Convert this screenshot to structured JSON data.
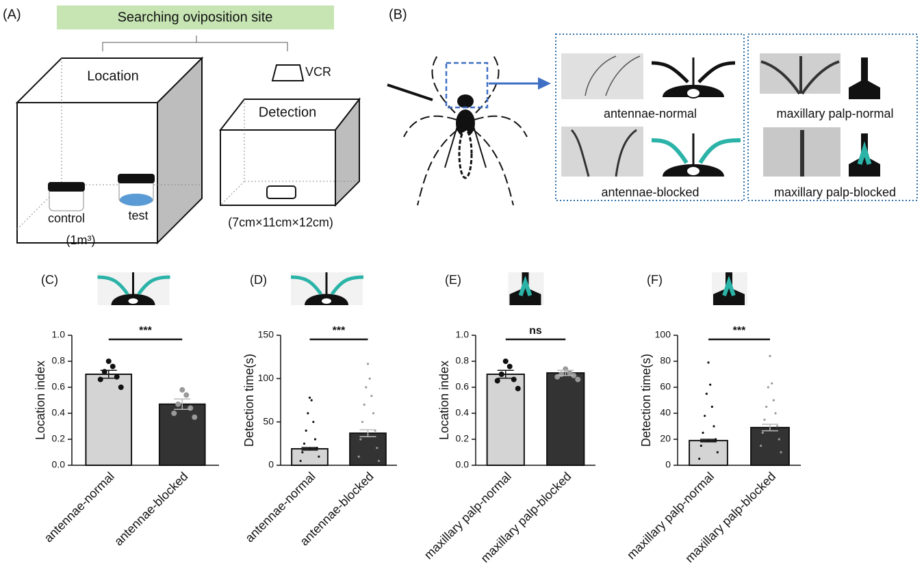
{
  "panel_a": {
    "label": "(A)",
    "banner": "Searching oviposition site",
    "location": "Location",
    "vcr": "VCR",
    "detection": "Detection",
    "control": "control",
    "test": "test",
    "volume": "(1m³)",
    "size": "(7cm×11cm×12cm)"
  },
  "panel_b": {
    "label": "(B)",
    "images": [
      "antennae-normal",
      "antennae-blocked",
      "maxillary palp-normal",
      "maxillary palp-blocked"
    ]
  },
  "chart_data": [
    {
      "type": "bar",
      "panel": "(C)",
      "ylabel": "Location index",
      "categories": [
        "antennae-normal",
        "antennae-blocked"
      ],
      "values": [
        0.7,
        0.47
      ],
      "errors": [
        0.03,
        0.04
      ],
      "colors": [
        "#d4d4d4",
        "#333333"
      ],
      "point_colors": [
        "#111111",
        "#999999"
      ],
      "points": [
        [
          0.8,
          0.76,
          0.72,
          0.68,
          0.66,
          0.6
        ],
        [
          0.58,
          0.54,
          0.47,
          0.44,
          0.4,
          0.37
        ]
      ],
      "ylim": [
        0,
        1
      ],
      "yticks": [
        {
          "value": 0,
          "label": "0.0"
        },
        {
          "value": 0.2,
          "label": "0.2"
        },
        {
          "value": 0.4,
          "label": "0.4"
        },
        {
          "value": 0.6,
          "label": "0.6"
        },
        {
          "value": 0.8,
          "label": "0.8"
        },
        {
          "value": 1,
          "label": "1.0"
        }
      ],
      "significance": "***"
    },
    {
      "type": "bar",
      "panel": "(D)",
      "ylabel": "Detection time(s)",
      "categories": [
        "antennae-normal",
        "antennae-blocked"
      ],
      "values": [
        19,
        37
      ],
      "errors": [
        1.5,
        4
      ],
      "colors": [
        "#d4d4d4",
        "#333333"
      ],
      "point_colors": [
        "#111111",
        "#999999"
      ],
      "points": [
        [
          78,
          75,
          60,
          50,
          40,
          30,
          25,
          20,
          15,
          10,
          5
        ],
        [
          117,
          100,
          90,
          80,
          70,
          60,
          50,
          40,
          30,
          20,
          10,
          5
        ]
      ],
      "ylim": [
        0,
        150
      ],
      "yticks": [
        0,
        50,
        100,
        150
      ],
      "significance": "***"
    },
    {
      "type": "bar",
      "panel": "(E)",
      "ylabel": "Location index",
      "categories": [
        "maxillary palp-normal",
        "maxillary palp-blocked"
      ],
      "values": [
        0.7,
        0.71
      ],
      "errors": [
        0.03,
        0.02
      ],
      "colors": [
        "#d4d4d4",
        "#333333"
      ],
      "point_colors": [
        "#111111",
        "#999999"
      ],
      "points": [
        [
          0.8,
          0.76,
          0.7,
          0.66,
          0.65,
          0.59
        ],
        [
          0.74,
          0.71,
          0.7,
          0.69,
          0.68,
          0.66
        ]
      ],
      "ylim": [
        0,
        1
      ],
      "yticks": [
        {
          "value": 0,
          "label": "0.0"
        },
        {
          "value": 0.2,
          "label": "0.2"
        },
        {
          "value": 0.4,
          "label": "0.4"
        },
        {
          "value": 0.6,
          "label": "0.6"
        },
        {
          "value": 0.8,
          "label": "0.8"
        },
        {
          "value": 1,
          "label": "1.0"
        }
      ],
      "significance": "ns"
    },
    {
      "type": "bar",
      "panel": "(F)",
      "ylabel": "Detection time(s)",
      "categories": [
        "maxillary palp-normal",
        "maxillary palp-blocked"
      ],
      "values": [
        19,
        29
      ],
      "errors": [
        1,
        2.5
      ],
      "colors": [
        "#d4d4d4",
        "#333333"
      ],
      "point_colors": [
        "#111111",
        "#999999"
      ],
      "points": [
        [
          79,
          62,
          55,
          45,
          38,
          30,
          25,
          20,
          15,
          10,
          5
        ],
        [
          84,
          63,
          60,
          50,
          45,
          40,
          35,
          30,
          25,
          20,
          15,
          10
        ]
      ],
      "ylim": [
        0,
        100
      ],
      "yticks": [
        0,
        20,
        40,
        60,
        80,
        100
      ],
      "significance": "***"
    }
  ]
}
